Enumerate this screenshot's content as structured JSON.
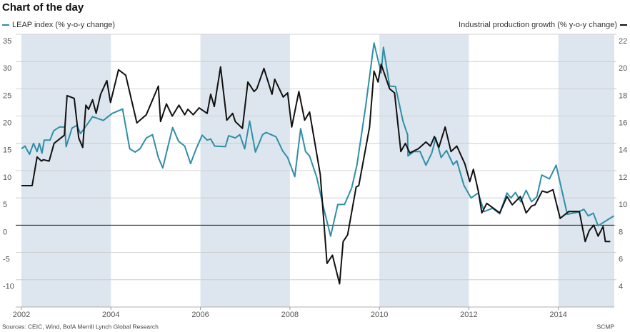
{
  "chart_data": {
    "type": "line",
    "title": "Chart of the day",
    "source": "Sources: CEIC, Wind, BofA Merrill Lynch Global Research",
    "credit": "SCMP",
    "xlim": [
      2002,
      2015.25
    ],
    "xticks": [
      2002,
      2004,
      2006,
      2008,
      2010,
      2012,
      2014
    ],
    "ylim": [
      -15,
      35
    ],
    "yticks": [
      -10,
      -5,
      0,
      5,
      10,
      15,
      20,
      25,
      30,
      35
    ],
    "y2lim": [
      2,
      22
    ],
    "y2ticks": [
      4,
      6,
      8,
      10,
      12,
      14,
      16,
      18,
      20,
      22
    ],
    "grid": true,
    "shaded_periods": [
      [
        2002,
        2004
      ],
      [
        2006,
        2008
      ],
      [
        2010,
        2012
      ],
      [
        2014,
        2015.25
      ]
    ],
    "shade_color": "#dde6ee",
    "series": [
      {
        "name": "LEAP index (% y-o-y change)",
        "color": "#2f8fa8",
        "axis": "y",
        "x": [
          2002.0,
          2002.08,
          2002.18,
          2002.27,
          2002.35,
          2002.4,
          2002.46,
          2002.51,
          2002.64,
          2002.72,
          2002.85,
          2002.97,
          2003.0,
          2003.13,
          2003.24,
          2003.32,
          2003.42,
          2003.59,
          2003.83,
          2004.03,
          2004.26,
          2004.42,
          2004.54,
          2004.65,
          2004.79,
          2004.93,
          2005.06,
          2005.16,
          2005.25,
          2005.38,
          2005.51,
          2005.65,
          2005.78,
          2005.91,
          2006.04,
          2006.15,
          2006.23,
          2006.32,
          2006.56,
          2006.63,
          2006.78,
          2006.88,
          2006.99,
          2007.1,
          2007.23,
          2007.39,
          2007.47,
          2007.69,
          2007.84,
          2007.95,
          2008.11,
          2008.24,
          2008.35,
          2008.44,
          2008.6,
          2008.75,
          2008.91,
          2009.07,
          2009.22,
          2009.38,
          2009.5,
          2009.69,
          2009.88,
          2010.04,
          2010.09,
          2010.23,
          2010.36,
          2010.53,
          2010.63,
          2010.64,
          2010.77,
          2010.91,
          2011.04,
          2011.17,
          2011.26,
          2011.38,
          2011.5,
          2011.65,
          2011.73,
          2011.89,
          2012.05,
          2012.21,
          2012.34,
          2012.53,
          2012.69,
          2012.85,
          2012.94,
          2013.04,
          2013.16,
          2013.28,
          2013.4,
          2013.52,
          2013.63,
          2013.8,
          2013.95,
          2014.2,
          2014.44,
          2014.57,
          2014.67,
          2014.78,
          2014.89,
          2015.24
        ],
        "values": [
          14.0,
          14.5,
          13.0,
          15.0,
          13.5,
          15.0,
          13.2,
          15.6,
          15.6,
          17.3,
          18.0,
          18.0,
          14.4,
          17.8,
          18.3,
          16.8,
          17.9,
          19.9,
          19.2,
          20.5,
          21.3,
          14.0,
          13.4,
          14.0,
          16.0,
          16.6,
          12.4,
          10.5,
          13.6,
          17.9,
          15.4,
          14.5,
          11.3,
          14.1,
          16.5,
          15.6,
          15.8,
          14.5,
          14.4,
          16.4,
          16.0,
          16.6,
          14.0,
          19.1,
          13.4,
          16.6,
          17.0,
          16.2,
          13.6,
          12.4,
          8.9,
          17.7,
          13.5,
          12.7,
          8.8,
          3.3,
          -2.0,
          3.8,
          3.8,
          6.8,
          11.1,
          21.6,
          33.4,
          27.9,
          32.6,
          25.5,
          25.4,
          19.0,
          16.6,
          12.7,
          13.5,
          13.5,
          11.0,
          13.2,
          16.0,
          12.4,
          13.7,
          11.1,
          11.8,
          7.3,
          5.0,
          5.9,
          2.5,
          3.1,
          2.1,
          5.9,
          5.0,
          6.0,
          4.3,
          6.4,
          4.3,
          5.2,
          9.2,
          8.5,
          11.0,
          2.0,
          2.4,
          2.9,
          1.7,
          2.2,
          -0.1,
          1.7
        ]
      },
      {
        "name": "Industrial production growth (% y-o-y change)",
        "color": "#111111",
        "axis": "y2",
        "x": [
          2002.0,
          2002.24,
          2002.35,
          2002.45,
          2002.49,
          2002.62,
          2002.73,
          2002.96,
          2003.02,
          2003.18,
          2003.28,
          2003.37,
          2003.44,
          2003.5,
          2003.59,
          2003.67,
          2003.77,
          2003.91,
          2003.99,
          2004.17,
          2004.33,
          2004.58,
          2004.79,
          2005.06,
          2005.11,
          2005.24,
          2005.37,
          2005.52,
          2005.65,
          2005.72,
          2005.84,
          2005.97,
          2006.15,
          2006.23,
          2006.31,
          2006.45,
          2006.59,
          2006.72,
          2006.78,
          2006.94,
          2007.06,
          2007.2,
          2007.26,
          2007.42,
          2007.6,
          2007.66,
          2007.85,
          2007.95,
          2008.04,
          2008.2,
          2008.33,
          2008.44,
          2008.68,
          2008.83,
          2008.95,
          2009.11,
          2009.19,
          2009.29,
          2009.48,
          2009.54,
          2009.78,
          2009.88,
          2009.97,
          2010.04,
          2010.23,
          2010.34,
          2010.48,
          2010.58,
          2010.68,
          2010.87,
          2011.04,
          2011.14,
          2011.23,
          2011.33,
          2011.47,
          2011.6,
          2011.73,
          2011.91,
          2012.02,
          2012.1,
          2012.21,
          2012.29,
          2012.4,
          2012.69,
          2012.85,
          2012.97,
          2013.15,
          2013.28,
          2013.4,
          2013.48,
          2013.64,
          2013.75,
          2013.88,
          2014.04,
          2014.23,
          2014.47,
          2014.6,
          2014.69,
          2014.79,
          2014.89,
          2015.0,
          2015.05,
          2015.16
        ],
        "values": [
          10.9,
          10.9,
          13.0,
          12.7,
          12.8,
          12.7,
          14.0,
          14.6,
          17.5,
          17.3,
          14.4,
          13.7,
          16.8,
          16.5,
          17.2,
          16.2,
          17.6,
          18.6,
          17.0,
          19.4,
          19.0,
          15.5,
          16.1,
          18.2,
          15.6,
          16.9,
          16.0,
          16.8,
          16.1,
          16.5,
          16.1,
          16.6,
          16.2,
          17.6,
          16.7,
          19.6,
          15.7,
          16.2,
          15.6,
          15.1,
          18.5,
          17.8,
          18.0,
          19.5,
          17.6,
          18.7,
          17.4,
          17.7,
          15.2,
          17.8,
          15.7,
          16.3,
          11.7,
          5.2,
          5.8,
          3.7,
          6.8,
          7.3,
          10.8,
          10.9,
          15.2,
          19.3,
          18.5,
          19.8,
          18.0,
          17.7,
          13.4,
          14.0,
          13.3,
          13.6,
          14.1,
          13.8,
          14.5,
          13.7,
          15.2,
          13.4,
          13.8,
          12.5,
          11.2,
          12.1,
          10.5,
          8.9,
          9.6,
          8.9,
          10.1,
          9.5,
          10.1,
          8.9,
          9.4,
          9.5,
          10.5,
          10.4,
          10.6,
          8.5,
          9.0,
          9.0,
          6.8,
          7.6,
          8.0,
          7.2,
          7.9,
          6.8,
          6.8
        ]
      }
    ]
  }
}
